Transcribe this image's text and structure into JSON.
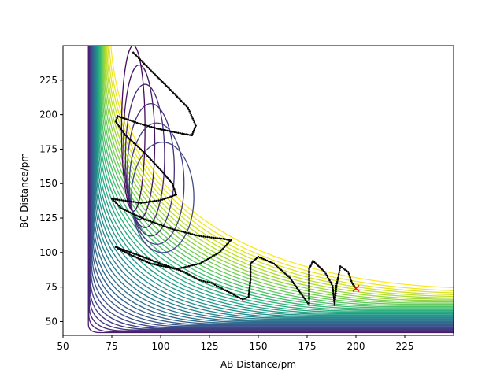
{
  "chart_data": {
    "type": "contour",
    "title": "",
    "xlabel": "AB Distance/pm",
    "ylabel": "BC Distance/pm",
    "xlim": [
      50,
      250
    ],
    "ylim": [
      40,
      250
    ],
    "xticks": [
      50,
      75,
      100,
      125,
      150,
      175,
      200,
      225
    ],
    "yticks": [
      50,
      75,
      100,
      125,
      150,
      175,
      200,
      225
    ],
    "grid": false,
    "legend": "none",
    "colormap": "viridis",
    "surface": {
      "well_x": 74,
      "well_y": 74,
      "asymptote_x": 63,
      "asymptote_y": 42,
      "contour_levels": 40
    },
    "trajectory": {
      "color": "#000000",
      "marker": "dots",
      "start": [
        86,
        245
      ],
      "end": [
        200,
        74
      ],
      "waypoints": [
        [
          86,
          245
        ],
        [
          95,
          232
        ],
        [
          105,
          218
        ],
        [
          114,
          205
        ],
        [
          118,
          192
        ],
        [
          116,
          185
        ],
        [
          108,
          187
        ],
        [
          98,
          190
        ],
        [
          88,
          194
        ],
        [
          78,
          199
        ],
        [
          77,
          195
        ],
        [
          82,
          185
        ],
        [
          92,
          172
        ],
        [
          100,
          160
        ],
        [
          106,
          150
        ],
        [
          108,
          142
        ],
        [
          100,
          138
        ],
        [
          90,
          136
        ],
        [
          80,
          138
        ],
        [
          75,
          139
        ],
        [
          80,
          132
        ],
        [
          92,
          124
        ],
        [
          106,
          117
        ],
        [
          120,
          112
        ],
        [
          132,
          110
        ],
        [
          136,
          109
        ],
        [
          130,
          100
        ],
        [
          120,
          92
        ],
        [
          108,
          88
        ],
        [
          95,
          92
        ],
        [
          85,
          98
        ],
        [
          78,
          103
        ],
        [
          77,
          104
        ],
        [
          85,
          100
        ],
        [
          100,
          92
        ],
        [
          112,
          86
        ],
        [
          120,
          80
        ],
        [
          126,
          78
        ],
        [
          134,
          72
        ],
        [
          142,
          66
        ],
        [
          145,
          68
        ],
        [
          146,
          80
        ],
        [
          146,
          92
        ],
        [
          150,
          97
        ],
        [
          158,
          92
        ],
        [
          166,
          82
        ],
        [
          172,
          70
        ],
        [
          176,
          62
        ],
        [
          176,
          72
        ],
        [
          176,
          88
        ],
        [
          178,
          94
        ],
        [
          184,
          86
        ],
        [
          188,
          76
        ],
        [
          189,
          64
        ],
        [
          189,
          62
        ],
        [
          190,
          76
        ],
        [
          192,
          90
        ],
        [
          196,
          86
        ],
        [
          198,
          78
        ],
        [
          200,
          74
        ]
      ]
    },
    "end_marker": {
      "x": 200,
      "y": 74,
      "symbol": "x",
      "color": "#ff0000"
    }
  }
}
